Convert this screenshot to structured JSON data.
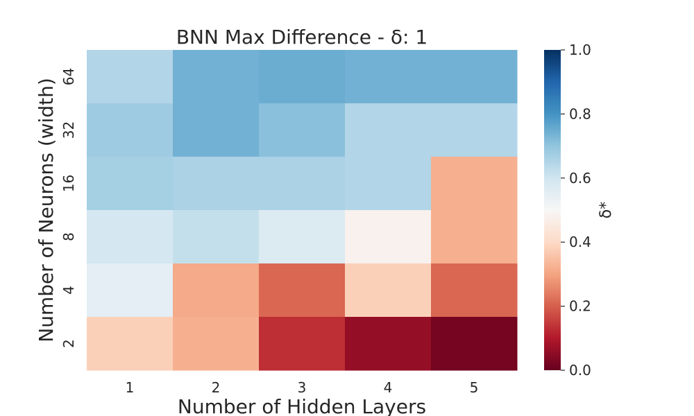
{
  "chart_data": {
    "type": "heatmap",
    "title": "BNN Max Difference - δ: 1",
    "xlabel": "Number of Hidden Layers",
    "ylabel": "Number of Neurons (width)",
    "x_categories": [
      "1",
      "2",
      "3",
      "4",
      "5"
    ],
    "y_categories": [
      "64",
      "32",
      "16",
      "8",
      "4",
      "2"
    ],
    "values": [
      [
        0.65,
        0.74,
        0.75,
        0.74,
        0.74
      ],
      [
        0.68,
        0.74,
        0.71,
        0.65,
        0.65
      ],
      [
        0.67,
        0.66,
        0.66,
        0.65,
        0.32
      ],
      [
        0.59,
        0.62,
        0.57,
        0.48,
        0.32
      ],
      [
        0.55,
        0.31,
        0.21,
        0.38,
        0.21
      ],
      [
        0.38,
        0.32,
        0.13,
        0.06,
        0.02
      ]
    ],
    "colorbar": {
      "label": "δ*",
      "range": [
        0.0,
        1.0
      ],
      "ticks": [
        "0.0",
        "0.2",
        "0.4",
        "0.6",
        "0.8",
        "1.0"
      ],
      "colormap": "RdBu",
      "stops": [
        "#67001f",
        "#b2182b",
        "#d6604d",
        "#f4a582",
        "#fddbc7",
        "#f7f7f7",
        "#d1e5f0",
        "#92c5de",
        "#4393c3",
        "#2166ac",
        "#053061"
      ]
    }
  }
}
